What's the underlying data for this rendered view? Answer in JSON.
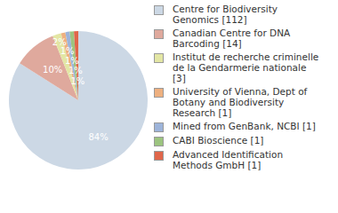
{
  "chart_data": {
    "type": "pie",
    "categories": [
      "Centre for Biodiversity Genomics [112]",
      "Canadian Centre for DNA Barcoding [14]",
      "Institut de recherche criminelle de la Gendarmerie nationale [3]",
      "University of Vienna, Dept of Botany and Biodiversity Research [1]",
      "Mined from GenBank, NCBI [1]",
      "CABI Bioscience [1]",
      "Advanced Identification Methods GmbH [1]"
    ],
    "values": [
      84,
      10,
      2,
      1,
      1,
      1,
      1
    ],
    "value_labels": [
      "84%",
      "10%",
      "2%",
      "1%",
      "1%",
      "1%",
      "1%"
    ],
    "colors": [
      "#ccd8e5",
      "#dfa99d",
      "#e3e6a4",
      "#eeb07f",
      "#9db4da",
      "#9cc47f",
      "#e0664a"
    ],
    "data_labels": true,
    "legend": "right"
  }
}
